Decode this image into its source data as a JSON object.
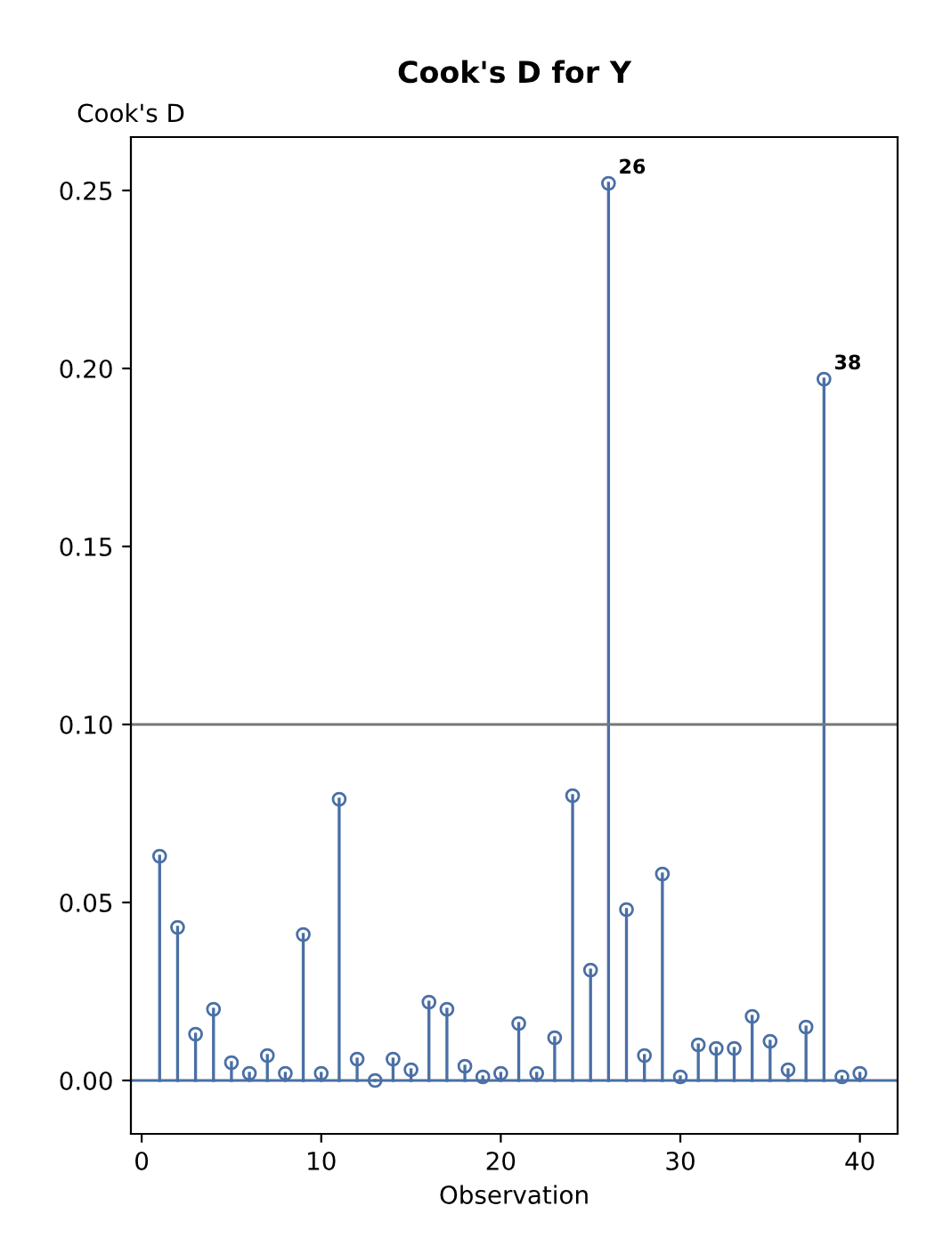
{
  "chart_data": {
    "type": "lollipop",
    "title": "Cook's D for Y",
    "xlabel": "Observation",
    "ylabel": "Cook's D",
    "x": [
      1,
      2,
      3,
      4,
      5,
      6,
      7,
      8,
      9,
      10,
      11,
      12,
      13,
      14,
      15,
      16,
      17,
      18,
      19,
      20,
      21,
      22,
      23,
      24,
      25,
      26,
      27,
      28,
      29,
      30,
      31,
      32,
      33,
      34,
      35,
      36,
      37,
      38,
      39,
      40
    ],
    "series": [
      {
        "color": "#4a6fa5",
        "values": [
          0.063,
          0.043,
          0.013,
          0.02,
          0.005,
          0.002,
          0.007,
          0.002,
          0.041,
          0.002,
          0.079,
          0.006,
          0.0,
          0.006,
          0.003,
          0.022,
          0.02,
          0.004,
          0.001,
          0.002,
          0.016,
          0.002,
          0.012,
          0.08,
          0.031,
          0.252,
          0.048,
          0.007,
          0.058,
          0.001,
          0.01,
          0.009,
          0.009,
          0.018,
          0.011,
          0.003,
          0.015,
          0.197,
          0.001,
          0.002
        ]
      }
    ],
    "xlim": [
      -0.6,
      42.1
    ],
    "xticks": [
      0,
      10,
      20,
      30,
      40
    ],
    "ylim": [
      -0.015,
      0.265
    ],
    "yticks": [
      {
        "value": 0,
        "label": "0.00"
      },
      {
        "value": 0.05,
        "label": "0.05"
      },
      {
        "value": 0.1,
        "label": "0.10"
      },
      {
        "value": 0.15,
        "label": "0.15"
      },
      {
        "value": 0.2,
        "label": "0.20"
      },
      {
        "value": 0.25,
        "label": "0.25"
      }
    ],
    "ref_lines": [
      {
        "axis": "y",
        "value": 0.1,
        "color": "#777777"
      },
      {
        "axis": "y",
        "value": 0,
        "color": "#4a6fa5"
      }
    ],
    "annotations": [
      {
        "text": "26",
        "x": 26,
        "y": 0.252
      },
      {
        "text": "38",
        "x": 38,
        "y": 0.197
      }
    ],
    "marker": "circle",
    "grid": false,
    "legend": false
  }
}
